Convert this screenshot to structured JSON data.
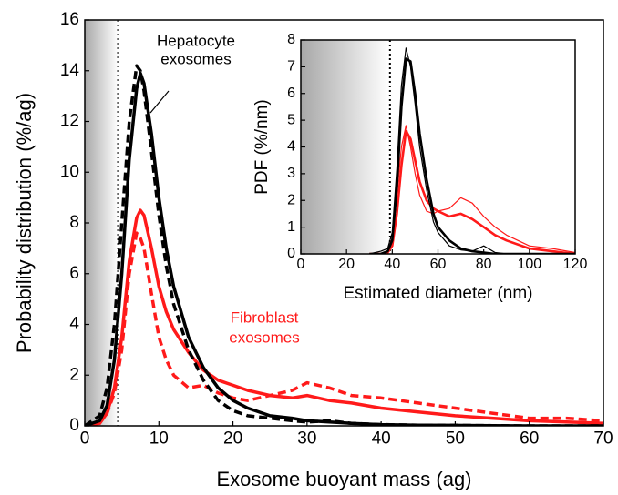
{
  "chart_data": [
    {
      "type": "line",
      "xlabel": "Exosome buoyant mass (ag)",
      "ylabel": "Probability distribution (%/ag)",
      "xlim": [
        0,
        70
      ],
      "xticks": [
        0,
        10,
        20,
        30,
        40,
        50,
        60,
        70
      ],
      "ylim": [
        0,
        16
      ],
      "yticks": [
        0,
        2,
        4,
        6,
        8,
        10,
        12,
        14,
        16
      ],
      "threshold": 4.5,
      "annotations": [
        [
          "Hepatocyte",
          "exosomes"
        ],
        [
          "Fibroblast",
          "exosomes"
        ]
      ],
      "annotation_colors": [
        "#000000",
        "#ff1a1a"
      ],
      "x": [
        0,
        2,
        3,
        4,
        5,
        6,
        7,
        7.5,
        8,
        9,
        10,
        11,
        12,
        14,
        16,
        18,
        20,
        22,
        25,
        28,
        30,
        33,
        36,
        40,
        45,
        50,
        55,
        60,
        65,
        70
      ],
      "series": [
        {
          "color": "#ff1a1a",
          "style": "dashed",
          "values": [
            0,
            0.1,
            0.5,
            1.3,
            3.0,
            6.0,
            7.6,
            7.4,
            7.0,
            5.2,
            3.5,
            2.6,
            2.0,
            1.5,
            1.6,
            1.3,
            1.1,
            1.0,
            1.2,
            1.4,
            1.7,
            1.5,
            1.2,
            1.1,
            0.9,
            0.7,
            0.5,
            0.3,
            0.3,
            0.2
          ]
        },
        {
          "color": "#ff1a1a",
          "style": "solid",
          "values": [
            0,
            0.1,
            0.5,
            1.5,
            3.5,
            6.5,
            8.2,
            8.5,
            8.3,
            7.0,
            5.5,
            4.5,
            3.8,
            2.9,
            2.2,
            1.8,
            1.6,
            1.4,
            1.2,
            1.1,
            1.2,
            1.0,
            0.9,
            0.7,
            0.55,
            0.4,
            0.3,
            0.2,
            0.15,
            0.1
          ]
        },
        {
          "color": "#000000",
          "style": "dashed",
          "values": [
            0,
            0.4,
            1.5,
            4.0,
            8.0,
            12.0,
            14.2,
            14.0,
            13.2,
            10.8,
            8.3,
            6.3,
            4.8,
            3.0,
            1.8,
            1.0,
            0.6,
            0.4,
            0.3,
            0.2,
            0.15,
            0.2,
            0.1,
            0.05,
            0.03,
            0.02,
            0.01,
            0,
            0,
            0
          ]
        },
        {
          "color": "#000000",
          "style": "solid",
          "values": [
            0,
            0.2,
            0.8,
            2.6,
            6.0,
            10.5,
            13.3,
            13.9,
            13.5,
            11.5,
            9.0,
            7.0,
            5.5,
            3.5,
            2.3,
            1.5,
            1.0,
            0.7,
            0.4,
            0.3,
            0.2,
            0.15,
            0.1,
            0.05,
            0.03,
            0.02,
            0.01,
            0,
            0,
            0
          ]
        }
      ]
    },
    {
      "type": "line",
      "xlabel": "Estimated diameter (nm)",
      "ylabel": "PDF (%/nm)",
      "xlim": [
        0,
        120
      ],
      "xticks": [
        0,
        20,
        40,
        60,
        80,
        100,
        120
      ],
      "ylim": [
        0,
        8
      ],
      "yticks": [
        0,
        1,
        2,
        3,
        4,
        5,
        6,
        7,
        8
      ],
      "threshold": 39,
      "x": [
        30,
        35,
        38,
        40,
        42,
        44,
        46,
        48,
        50,
        52,
        55,
        58,
        60,
        65,
        70,
        75,
        80,
        85,
        90,
        100,
        110,
        120
      ],
      "series": [
        {
          "color": "#ff1a1a",
          "style": "thin",
          "values": [
            0,
            0,
            0.1,
            0.6,
            2.2,
            4.0,
            4.8,
            4.0,
            3.0,
            2.2,
            1.6,
            1.5,
            1.6,
            1.7,
            2.1,
            1.9,
            1.4,
            1.0,
            0.7,
            0.3,
            0.2,
            0.05
          ]
        },
        {
          "color": "#ff1a1a",
          "style": "solid",
          "values": [
            0,
            0,
            0.05,
            0.3,
            1.5,
            3.3,
            4.6,
            4.3,
            3.5,
            2.7,
            2.0,
            1.7,
            1.6,
            1.4,
            1.5,
            1.3,
            1.0,
            0.7,
            0.5,
            0.2,
            0.1,
            0
          ]
        },
        {
          "color": "#000000",
          "style": "thin",
          "values": [
            0,
            0.1,
            0.2,
            0.8,
            3.2,
            6.3,
            7.7,
            7.0,
            5.6,
            4.0,
            2.4,
            1.2,
            0.8,
            0.3,
            0.15,
            0.1,
            0.3,
            0.05,
            0,
            0,
            0,
            0
          ]
        },
        {
          "color": "#000000",
          "style": "solid",
          "values": [
            0,
            0,
            0.1,
            0.5,
            2.5,
            5.5,
            7.3,
            7.2,
            6.0,
            4.5,
            2.8,
            1.5,
            1.0,
            0.5,
            0.2,
            0.1,
            0.05,
            0,
            0,
            0,
            0,
            0
          ]
        }
      ]
    }
  ]
}
